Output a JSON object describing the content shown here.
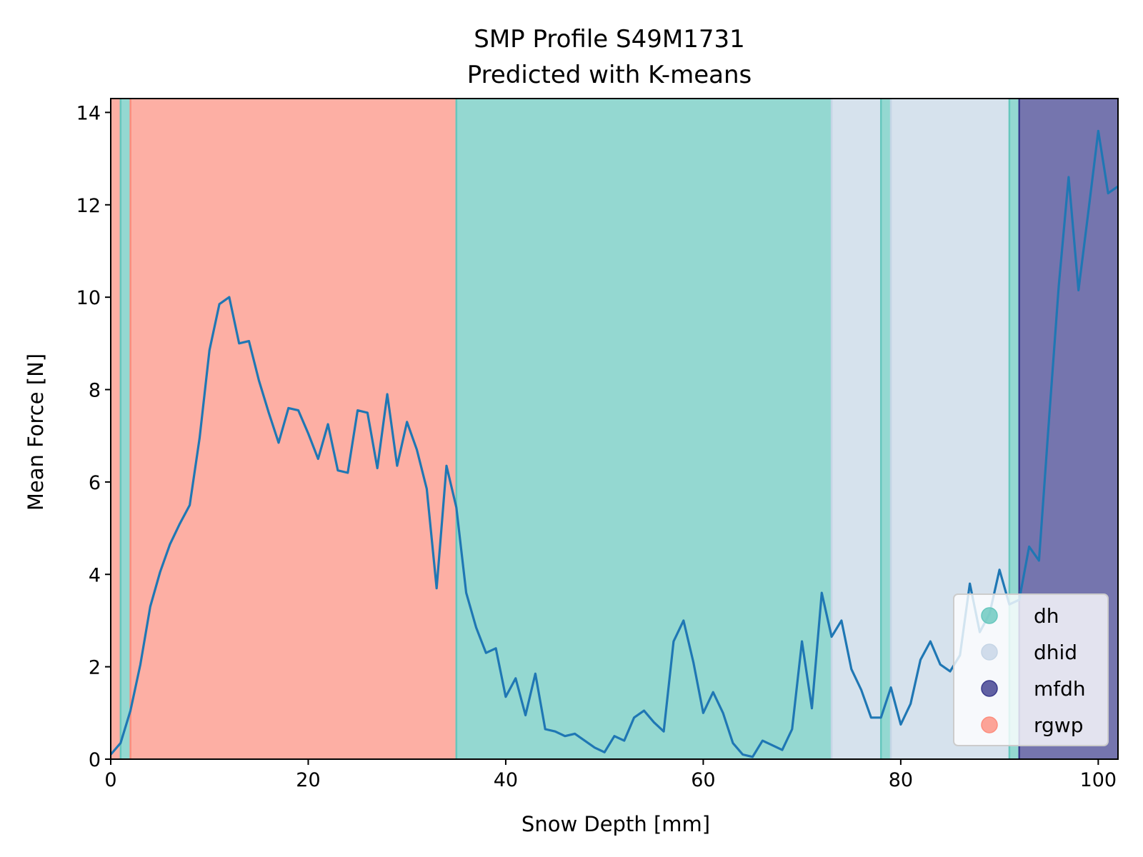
{
  "chart_data": {
    "type": "line",
    "title": "SMP Profile S49M1731",
    "subtitle": "Predicted with K-means",
    "xlabel": "Snow Depth [mm]",
    "ylabel": "Mean Force [N]",
    "xlim": [
      0,
      102
    ],
    "ylim": [
      0,
      14.3
    ],
    "xticks": [
      0,
      20,
      40,
      60,
      80,
      100
    ],
    "yticks": [
      0,
      2,
      4,
      6,
      8,
      10,
      12,
      14
    ],
    "grid": false,
    "legend_position": "lower-right",
    "classes": [
      {
        "name": "dh",
        "color": "#66c7bd"
      },
      {
        "name": "dhid",
        "color": "#c5d5e6"
      },
      {
        "name": "mfdh",
        "color": "#3b3b8c"
      },
      {
        "name": "rgwp",
        "color": "#fc8d7d"
      }
    ],
    "segments": [
      {
        "start": 0,
        "end": 1,
        "class": "rgwp"
      },
      {
        "start": 1,
        "end": 2,
        "class": "dh"
      },
      {
        "start": 2,
        "end": 35,
        "class": "rgwp"
      },
      {
        "start": 35,
        "end": 73,
        "class": "dh"
      },
      {
        "start": 73,
        "end": 78,
        "class": "dhid"
      },
      {
        "start": 78,
        "end": 79,
        "class": "dh"
      },
      {
        "start": 79,
        "end": 91,
        "class": "dhid"
      },
      {
        "start": 91,
        "end": 92,
        "class": "dh"
      },
      {
        "start": 92,
        "end": 102,
        "class": "mfdh"
      }
    ],
    "series": [
      {
        "color": "#1f77b4",
        "x": [
          0,
          1,
          2,
          3,
          4,
          5,
          6,
          7,
          8,
          9,
          10,
          11,
          12,
          13,
          14,
          15,
          16,
          17,
          18,
          19,
          20,
          21,
          22,
          23,
          24,
          25,
          26,
          27,
          28,
          29,
          30,
          31,
          32,
          33,
          34,
          35,
          36,
          37,
          38,
          39,
          40,
          41,
          42,
          43,
          44,
          45,
          46,
          47,
          48,
          49,
          50,
          51,
          52,
          53,
          54,
          55,
          56,
          57,
          58,
          59,
          60,
          61,
          62,
          63,
          64,
          65,
          66,
          67,
          68,
          69,
          70,
          71,
          72,
          73,
          74,
          75,
          76,
          77,
          78,
          79,
          80,
          81,
          82,
          83,
          84,
          85,
          86,
          87,
          88,
          89,
          90,
          91,
          92,
          93,
          94,
          95,
          96,
          97,
          98,
          99,
          100,
          101,
          102
        ],
        "values": [
          0.1,
          0.35,
          1.05,
          2.05,
          3.3,
          4.05,
          4.65,
          5.1,
          5.5,
          6.95,
          8.85,
          9.85,
          10.0,
          9.0,
          9.05,
          8.2,
          7.5,
          6.85,
          7.6,
          7.55,
          7.05,
          6.5,
          7.25,
          6.25,
          6.2,
          7.55,
          7.5,
          6.3,
          7.9,
          6.35,
          7.3,
          6.7,
          5.85,
          3.7,
          6.35,
          5.45,
          3.6,
          2.85,
          2.3,
          2.4,
          1.35,
          1.75,
          0.95,
          1.85,
          0.65,
          0.6,
          0.5,
          0.55,
          0.4,
          0.25,
          0.15,
          0.5,
          0.4,
          0.9,
          1.05,
          0.8,
          0.6,
          2.55,
          3.0,
          2.1,
          1.0,
          1.45,
          1.0,
          0.35,
          0.1,
          0.05,
          0.4,
          0.3,
          0.2,
          0.65,
          2.55,
          1.1,
          3.6,
          2.65,
          3.0,
          1.95,
          1.5,
          0.9,
          0.9,
          1.55,
          0.75,
          1.2,
          2.15,
          2.55,
          2.05,
          1.9,
          2.25,
          3.8,
          2.75,
          3.15,
          4.1,
          3.35,
          3.45,
          4.6,
          4.3,
          7.3,
          10.25,
          12.6,
          10.15,
          11.85,
          13.6,
          12.25,
          12.4
        ]
      }
    ]
  }
}
